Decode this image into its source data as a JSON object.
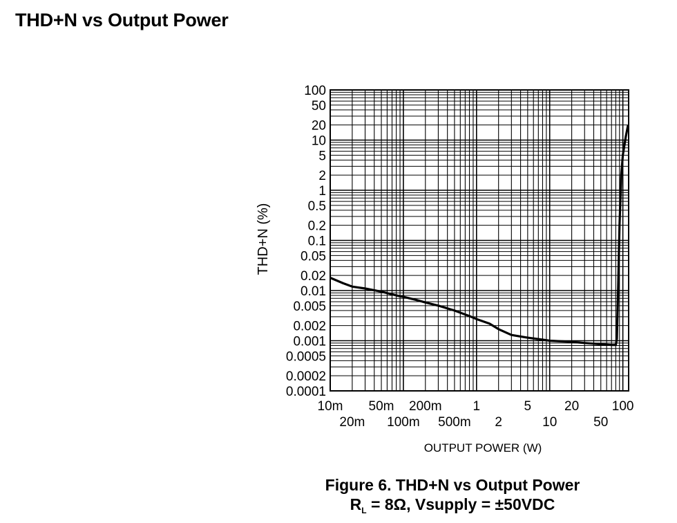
{
  "page": {
    "heading": "THD+N vs Output Power"
  },
  "figure": {
    "caption_title": "Figure 6. THD+N vs Output Power",
    "caption_condition_r": "R",
    "caption_condition_sub": "L",
    "caption_condition_rest": " = 8Ω, Vsupply = ±50VDC"
  },
  "colors": {
    "grid": "#000000",
    "curve": "#000000",
    "background": "#ffffff"
  },
  "chart_data": {
    "type": "line",
    "title": "",
    "xlabel": "OUTPUT POWER (W)",
    "ylabel": "THD+N (%)",
    "x_scale": "log",
    "y_scale": "log",
    "xlim": [
      0.01,
      120
    ],
    "ylim": [
      0.0001,
      100
    ],
    "grid": true,
    "x_ticks_row1": [
      {
        "value": 0.01,
        "label": "10m"
      },
      {
        "value": 0.05,
        "label": "50m"
      },
      {
        "value": 0.2,
        "label": "200m"
      },
      {
        "value": 1,
        "label": "1"
      },
      {
        "value": 5,
        "label": "5"
      },
      {
        "value": 20,
        "label": "20"
      },
      {
        "value": 100,
        "label": "100"
      }
    ],
    "x_ticks_row2": [
      {
        "value": 0.02,
        "label": "20m"
      },
      {
        "value": 0.1,
        "label": "100m"
      },
      {
        "value": 0.5,
        "label": "500m"
      },
      {
        "value": 2,
        "label": "2"
      },
      {
        "value": 10,
        "label": "10"
      },
      {
        "value": 50,
        "label": "50"
      }
    ],
    "y_ticks": [
      {
        "value": 100,
        "label": "100"
      },
      {
        "value": 50,
        "label": "50"
      },
      {
        "value": 20,
        "label": "20"
      },
      {
        "value": 10,
        "label": "10"
      },
      {
        "value": 5,
        "label": "5"
      },
      {
        "value": 2,
        "label": "2"
      },
      {
        "value": 1,
        "label": "1"
      },
      {
        "value": 0.5,
        "label": "0.5"
      },
      {
        "value": 0.2,
        "label": "0.2"
      },
      {
        "value": 0.1,
        "label": "0.1"
      },
      {
        "value": 0.05,
        "label": "0.05"
      },
      {
        "value": 0.02,
        "label": "0.02"
      },
      {
        "value": 0.01,
        "label": "0.01"
      },
      {
        "value": 0.005,
        "label": "0.005"
      },
      {
        "value": 0.002,
        "label": "0.002"
      },
      {
        "value": 0.001,
        "label": "0.001"
      },
      {
        "value": 0.0005,
        "label": "0.0005"
      },
      {
        "value": 0.0002,
        "label": "0.0002"
      },
      {
        "value": 0.0001,
        "label": "0.0001"
      }
    ],
    "series": [
      {
        "x": [
          0.01,
          0.015,
          0.02,
          0.03,
          0.05,
          0.08,
          0.1,
          0.15,
          0.2,
          0.3,
          0.5,
          0.8,
          1,
          1.5,
          2,
          3,
          5,
          8,
          10,
          20,
          30,
          50,
          70,
          80,
          83,
          86,
          90,
          95,
          100,
          110,
          118
        ],
        "y": [
          0.018,
          0.014,
          0.012,
          0.011,
          0.0095,
          0.008,
          0.0075,
          0.0065,
          0.0058,
          0.005,
          0.004,
          0.0031,
          0.0027,
          0.0022,
          0.0017,
          0.0013,
          0.00115,
          0.00105,
          0.001,
          0.00095,
          0.0009,
          0.00085,
          0.00082,
          0.00082,
          0.0011,
          0.01,
          0.2,
          2,
          5,
          12,
          20
        ]
      }
    ]
  }
}
